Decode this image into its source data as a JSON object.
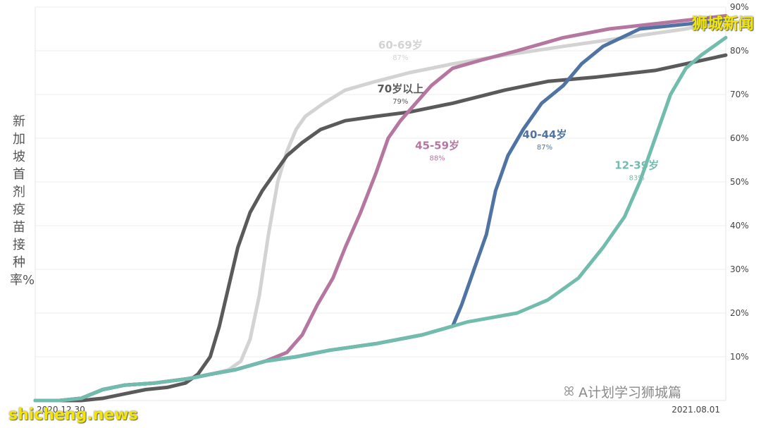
{
  "ylabel": "新加坡首剂疫苗接种率%",
  "watermark_top": "狮城新闻",
  "watermark_bottom": "shicheng.news",
  "credit": {
    "icon": "wechat-icon",
    "text": "A计划学习狮城篇"
  },
  "chart_data": {
    "type": "line",
    "title": "",
    "xlabel": "",
    "ylabel": "新加坡首剂疫苗接种率%",
    "x_range": [
      "2020-12-30",
      "2021-08-12"
    ],
    "x_ticks": [
      "2020.12.30",
      "2021.08.01"
    ],
    "ylim": [
      0,
      90
    ],
    "y_ticks": [
      10,
      20,
      30,
      40,
      50,
      60,
      70,
      80,
      90
    ],
    "y_tick_labels": [
      "10%",
      "20%",
      "30%",
      "40%",
      "50%",
      "60%",
      "70%",
      "80%",
      "90%"
    ],
    "y_axis_side": "right",
    "grid": true,
    "legend": "inline-labels",
    "series": [
      {
        "name": "60-69岁",
        "final_label": "87%",
        "color": "#d3d3d3",
        "points": [
          [
            "2020-12-30",
            0
          ],
          [
            "2021-01-07",
            0
          ],
          [
            "2021-01-14",
            0.5
          ],
          [
            "2021-01-21",
            2.5
          ],
          [
            "2021-01-28",
            3.5
          ],
          [
            "2021-02-07",
            4
          ],
          [
            "2021-02-18",
            5
          ],
          [
            "2021-02-25",
            6
          ],
          [
            "2021-03-03",
            7
          ],
          [
            "2021-03-07",
            9
          ],
          [
            "2021-03-10",
            14
          ],
          [
            "2021-03-13",
            24
          ],
          [
            "2021-03-16",
            38
          ],
          [
            "2021-03-19",
            50
          ],
          [
            "2021-03-22",
            57
          ],
          [
            "2021-03-25",
            62
          ],
          [
            "2021-03-28",
            65
          ],
          [
            "2021-04-03",
            68
          ],
          [
            "2021-04-10",
            71
          ],
          [
            "2021-04-20",
            73
          ],
          [
            "2021-05-01",
            75
          ],
          [
            "2021-05-15",
            77
          ],
          [
            "2021-06-01",
            79
          ],
          [
            "2021-06-20",
            81
          ],
          [
            "2021-07-10",
            83
          ],
          [
            "2021-07-30",
            85
          ],
          [
            "2021-08-12",
            87
          ]
        ]
      },
      {
        "name": "70岁以上",
        "final_label": "79%",
        "color": "#5a5a5a",
        "points": [
          [
            "2020-12-30",
            0
          ],
          [
            "2021-01-14",
            0
          ],
          [
            "2021-01-21",
            0.5
          ],
          [
            "2021-01-28",
            1.5
          ],
          [
            "2021-02-04",
            2.5
          ],
          [
            "2021-02-11",
            3
          ],
          [
            "2021-02-17",
            4
          ],
          [
            "2021-02-21",
            6
          ],
          [
            "2021-02-25",
            10
          ],
          [
            "2021-02-28",
            17
          ],
          [
            "2021-03-03",
            26
          ],
          [
            "2021-03-06",
            35
          ],
          [
            "2021-03-10",
            43
          ],
          [
            "2021-03-14",
            48
          ],
          [
            "2021-03-18",
            52
          ],
          [
            "2021-03-22",
            56
          ],
          [
            "2021-03-27",
            59
          ],
          [
            "2021-04-02",
            62
          ],
          [
            "2021-04-10",
            64
          ],
          [
            "2021-04-20",
            65
          ],
          [
            "2021-05-01",
            66
          ],
          [
            "2021-05-15",
            68
          ],
          [
            "2021-06-01",
            71
          ],
          [
            "2021-06-15",
            73
          ],
          [
            "2021-07-01",
            74
          ],
          [
            "2021-07-20",
            75.5
          ],
          [
            "2021-08-12",
            79
          ]
        ]
      },
      {
        "name": "45-59岁",
        "final_label": "88%",
        "color": "#b5779f",
        "points": [
          [
            "2020-12-30",
            0
          ],
          [
            "2021-01-07",
            0
          ],
          [
            "2021-01-14",
            0.5
          ],
          [
            "2021-01-21",
            2.5
          ],
          [
            "2021-01-28",
            3.5
          ],
          [
            "2021-02-07",
            4
          ],
          [
            "2021-02-18",
            5
          ],
          [
            "2021-02-25",
            6
          ],
          [
            "2021-03-05",
            7
          ],
          [
            "2021-03-15",
            9
          ],
          [
            "2021-03-22",
            11
          ],
          [
            "2021-03-27",
            15
          ],
          [
            "2021-04-01",
            22
          ],
          [
            "2021-04-06",
            28
          ],
          [
            "2021-04-10",
            35
          ],
          [
            "2021-04-15",
            43
          ],
          [
            "2021-04-20",
            52
          ],
          [
            "2021-04-24",
            60
          ],
          [
            "2021-04-28",
            64
          ],
          [
            "2021-05-03",
            68
          ],
          [
            "2021-05-08",
            72
          ],
          [
            "2021-05-15",
            76
          ],
          [
            "2021-05-25",
            78
          ],
          [
            "2021-06-05",
            80
          ],
          [
            "2021-06-20",
            83
          ],
          [
            "2021-07-05",
            85
          ],
          [
            "2021-08-12",
            88
          ]
        ]
      },
      {
        "name": "40-44岁",
        "final_label": "87%",
        "color": "#4f74a3",
        "points": [
          [
            "2020-12-30",
            0
          ],
          [
            "2021-01-07",
            0
          ],
          [
            "2021-01-14",
            0.5
          ],
          [
            "2021-01-21",
            2.5
          ],
          [
            "2021-01-28",
            3.5
          ],
          [
            "2021-02-07",
            4
          ],
          [
            "2021-02-18",
            5
          ],
          [
            "2021-02-25",
            6
          ],
          [
            "2021-03-05",
            7
          ],
          [
            "2021-03-15",
            9
          ],
          [
            "2021-03-25",
            10
          ],
          [
            "2021-04-05",
            11.5
          ],
          [
            "2021-04-20",
            13
          ],
          [
            "2021-05-05",
            15
          ],
          [
            "2021-05-15",
            17
          ],
          [
            "2021-05-18",
            22
          ],
          [
            "2021-05-22",
            30
          ],
          [
            "2021-05-26",
            38
          ],
          [
            "2021-05-29",
            48
          ],
          [
            "2021-06-02",
            56
          ],
          [
            "2021-06-07",
            62
          ],
          [
            "2021-06-13",
            68
          ],
          [
            "2021-06-20",
            72
          ],
          [
            "2021-06-26",
            77
          ],
          [
            "2021-07-03",
            81
          ],
          [
            "2021-07-15",
            85
          ],
          [
            "2021-08-12",
            87
          ]
        ]
      },
      {
        "name": "12-39岁",
        "final_label": "83%",
        "color": "#72bcae",
        "points": [
          [
            "2020-12-30",
            0
          ],
          [
            "2021-01-07",
            0
          ],
          [
            "2021-01-14",
            0.5
          ],
          [
            "2021-01-21",
            2.5
          ],
          [
            "2021-01-28",
            3.5
          ],
          [
            "2021-02-07",
            4
          ],
          [
            "2021-02-18",
            5
          ],
          [
            "2021-02-25",
            6
          ],
          [
            "2021-03-05",
            7
          ],
          [
            "2021-03-15",
            9
          ],
          [
            "2021-03-25",
            10
          ],
          [
            "2021-04-05",
            11.5
          ],
          [
            "2021-04-20",
            13
          ],
          [
            "2021-05-05",
            15
          ],
          [
            "2021-05-20",
            18
          ],
          [
            "2021-06-05",
            20
          ],
          [
            "2021-06-15",
            23
          ],
          [
            "2021-06-25",
            28
          ],
          [
            "2021-07-03",
            35
          ],
          [
            "2021-07-10",
            42
          ],
          [
            "2021-07-15",
            50
          ],
          [
            "2021-07-20",
            60
          ],
          [
            "2021-07-25",
            70
          ],
          [
            "2021-07-30",
            76
          ],
          [
            "2021-08-04",
            79
          ],
          [
            "2021-08-12",
            83
          ]
        ]
      }
    ],
    "annotations": [
      {
        "series": "60-69岁",
        "name": "60-69岁",
        "value": "87%",
        "at": [
          "2021-04-28",
          80.5
        ]
      },
      {
        "series": "70岁以上",
        "name": "70岁以上",
        "value": "79%",
        "at": [
          "2021-04-28",
          70.5
        ]
      },
      {
        "series": "45-59岁",
        "name": "45-59岁",
        "value": "88%",
        "at": [
          "2021-05-10",
          57.5
        ]
      },
      {
        "series": "40-44岁",
        "name": "40-44岁",
        "value": "87%",
        "at": [
          "2021-06-14",
          60
        ]
      },
      {
        "series": "12-39岁",
        "name": "12-39岁",
        "value": "83%",
        "at": [
          "2021-07-14",
          53
        ]
      }
    ]
  }
}
